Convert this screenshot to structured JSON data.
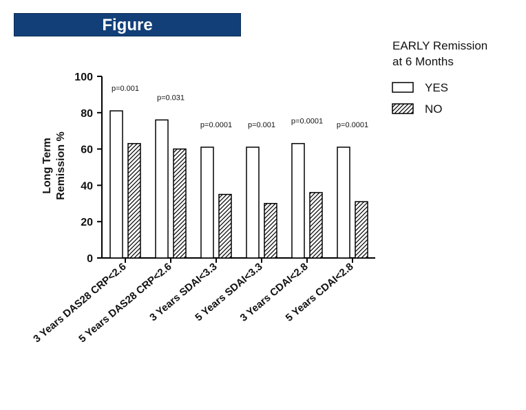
{
  "header": {
    "title": "Figure"
  },
  "chart_data": {
    "type": "bar",
    "title": "",
    "xlabel": "",
    "ylabel": "Long Term Remission %",
    "ylim": [
      0,
      100
    ],
    "yticks": [
      "0",
      "20",
      "40",
      "60",
      "80",
      "100"
    ],
    "grid": false,
    "legend_position": "top-right",
    "legend_title": "EARLY Remission at 6 Months",
    "categories": [
      "3 Years DAS28 CRP<2.6",
      "5 Years DAS28 CRP<2.6",
      "3 Years SDAI<3.3",
      "5 Years SDAI<3.3",
      "3 Years CDAI<2.8",
      "5 Years CDAI<2.8"
    ],
    "series": [
      {
        "name": "YES",
        "pattern": "open",
        "values": [
          81,
          76,
          61,
          61,
          63,
          61
        ]
      },
      {
        "name": "NO",
        "pattern": "hatched",
        "values": [
          63,
          60,
          35,
          30,
          36,
          31
        ]
      }
    ],
    "annotations": [
      "p=0.001",
      "p=0.031",
      "p=0.0001",
      "p=0.001",
      "p=0.0001",
      "p=0.0001"
    ]
  }
}
